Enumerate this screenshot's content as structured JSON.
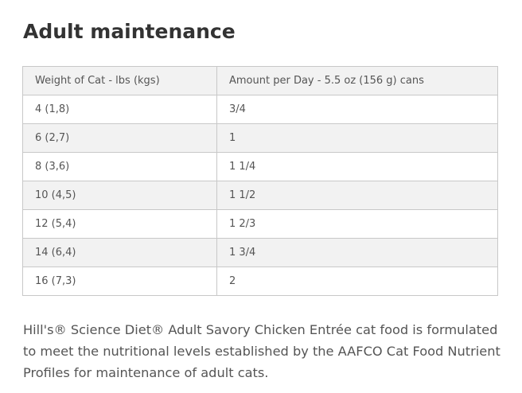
{
  "section": {
    "title": "Adult maintenance"
  },
  "table": {
    "headers": [
      "Weight of Cat - lbs (kgs)",
      "Amount per Day - 5.5 oz (156 g) cans"
    ],
    "rows": [
      [
        "4 (1,8)",
        "3/4"
      ],
      [
        "6 (2,7)",
        "1"
      ],
      [
        "8 (3,6)",
        "1 1/4"
      ],
      [
        "10 (4,5)",
        "1 1/2"
      ],
      [
        "12 (5,4)",
        "1 2/3"
      ],
      [
        "14 (6,4)",
        "1 3/4"
      ],
      [
        "16 (7,3)",
        "2"
      ]
    ]
  },
  "description": "Hill's® Science Diet® Adult Savory Chicken Entrée cat food is formulated to meet the nutritional levels established by the AAFCO Cat Food Nutrient Profiles for maintenance of adult cats.",
  "colors": {
    "heading_text": "#333333",
    "body_text": "#555555",
    "border": "#c8c8c8",
    "shaded_row": "#f2f2f2",
    "background": "#ffffff"
  }
}
